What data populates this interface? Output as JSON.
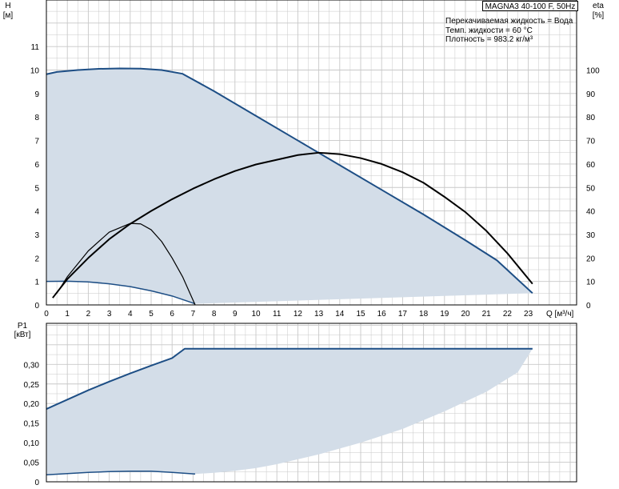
{
  "title": "MAGNA3 40-100 F, 50Hz",
  "info_lines": [
    "Перекачиваемая жидкость = Вода",
    "Темп. жидкости = 60 °C",
    "Плотность = 983.2 кг/м³"
  ],
  "colors": {
    "area": "#d3dde8",
    "blue": "#1d4e85",
    "black": "#000000",
    "grid": "#c8c8c8",
    "border": "#000000"
  },
  "chart_data": [
    {
      "type": "line",
      "name": "head-efficiency",
      "x_label": "Q [м³/ч]",
      "y_label_line1": "H",
      "y_label_line2": "[м]",
      "y2_label_line1": "eta",
      "y2_label_line2": "[%]",
      "xlim": [
        0,
        24
      ],
      "ylim": [
        0,
        12
      ],
      "y2lim": [
        0,
        120
      ],
      "x_ticks": [
        0,
        1,
        2,
        3,
        4,
        5,
        6,
        7,
        8,
        9,
        10,
        11,
        12,
        13,
        14,
        15,
        16,
        17,
        18,
        19,
        20,
        21,
        22,
        23
      ],
      "y_ticks": [
        0,
        1,
        2,
        3,
        4,
        5,
        6,
        7,
        8,
        9,
        10,
        11
      ],
      "y2_ticks": [
        0,
        10,
        20,
        30,
        40,
        50,
        60,
        70,
        80,
        90,
        100
      ],
      "grid": true,
      "area_upper": {
        "x": [
          0,
          0.5,
          1.5,
          2.5,
          3.5,
          4.5,
          5.5,
          6.5,
          8,
          10,
          12,
          14,
          16,
          18,
          20,
          21.5,
          23.2
        ],
        "y": [
          9.82,
          9.92,
          10.0,
          10.05,
          10.07,
          10.06,
          10.0,
          9.84,
          9.1,
          8.05,
          7.0,
          5.95,
          4.9,
          3.85,
          2.75,
          1.9,
          0.5
        ]
      },
      "area_lower": {
        "x": [
          0,
          1,
          2,
          3,
          4,
          5,
          6,
          7.1
        ],
        "y": [
          1.0,
          1.01,
          0.98,
          0.9,
          0.78,
          0.6,
          0.38,
          0.05
        ]
      },
      "series": [
        {
          "name": "eta_max",
          "axis": "eta",
          "x": [
            0.3,
            1,
            2,
            3,
            4,
            5,
            6,
            7,
            8,
            9,
            10,
            11,
            12,
            13,
            14,
            15,
            16,
            17,
            18,
            19,
            20,
            21,
            22,
            23.2
          ],
          "y": [
            3,
            11,
            20,
            28,
            34.5,
            40,
            45,
            49.5,
            53.5,
            57,
            59.8,
            61.8,
            63.8,
            64.8,
            64.2,
            62.5,
            60,
            56.5,
            52,
            46,
            39.5,
            31.5,
            22,
            9
          ]
        },
        {
          "name": "eta_min",
          "axis": "eta",
          "x": [
            0.5,
            1,
            2,
            3,
            4,
            4.5,
            5,
            5.5,
            6,
            6.5,
            7.1
          ],
          "y": [
            5,
            12,
            23,
            31,
            34.7,
            34.5,
            32,
            27,
            20,
            12,
            0
          ]
        }
      ]
    },
    {
      "type": "line",
      "name": "power",
      "y_label_line1": "P1",
      "y_label_line2": "[кВт]",
      "xlim": [
        0,
        24
      ],
      "ylim": [
        0,
        0.35
      ],
      "y_ticks": [
        0,
        0.05,
        0.1,
        0.15,
        0.2,
        0.25,
        0.3
      ],
      "y_tick_labels": [
        "0",
        "0,05",
        "0,10",
        "0,15",
        "0,20",
        "0,25",
        "0,30"
      ],
      "grid": true,
      "area_upper": {
        "x": [
          0,
          1,
          2,
          3,
          4,
          5,
          6,
          6.6,
          8,
          10,
          12,
          14,
          16,
          18,
          20,
          22,
          23.2
        ],
        "y": [
          0.186,
          0.21,
          0.234,
          0.256,
          0.277,
          0.297,
          0.316,
          0.34,
          0.34,
          0.34,
          0.34,
          0.34,
          0.34,
          0.34,
          0.34,
          0.34,
          0.34
        ]
      },
      "area_lower_rev": {
        "x": [
          23.2,
          22.5,
          21,
          19,
          17,
          15,
          13,
          11,
          10,
          9,
          8,
          7.1,
          6,
          4,
          2,
          0
        ],
        "y": [
          0.34,
          0.28,
          0.23,
          0.18,
          0.135,
          0.1,
          0.07,
          0.045,
          0.035,
          0.028,
          0.023,
          0.02,
          0.024,
          0.026,
          0.024,
          0.018
        ]
      },
      "series": [
        {
          "name": "p1_max",
          "x": [
            0,
            1,
            2,
            3,
            4,
            5,
            6,
            6.6,
            8,
            10,
            12,
            14,
            16,
            18,
            20,
            22,
            23.2
          ],
          "y": [
            0.186,
            0.21,
            0.234,
            0.256,
            0.277,
            0.297,
            0.316,
            0.34,
            0.34,
            0.34,
            0.34,
            0.34,
            0.34,
            0.34,
            0.34,
            0.34,
            0.34
          ]
        },
        {
          "name": "p1_min",
          "x": [
            0,
            1,
            2,
            3,
            4,
            5,
            6,
            7.1
          ],
          "y": [
            0.018,
            0.021,
            0.024,
            0.026,
            0.027,
            0.027,
            0.024,
            0.02
          ]
        }
      ]
    }
  ]
}
